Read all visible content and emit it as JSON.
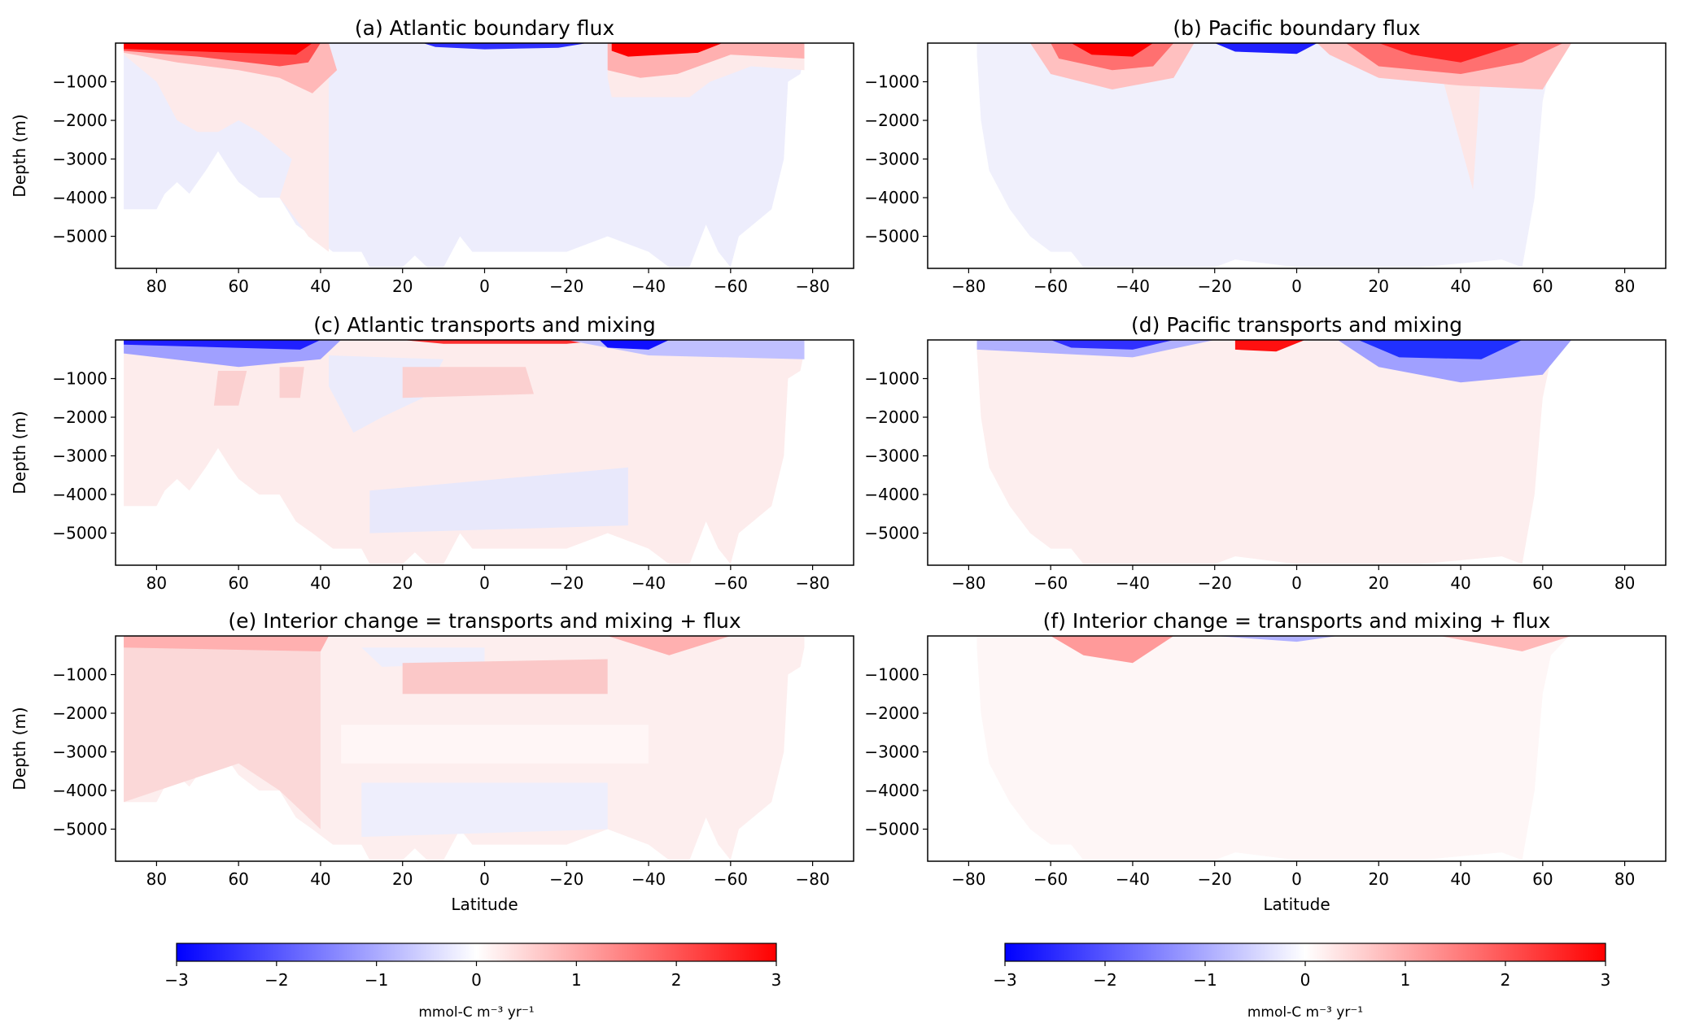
{
  "chart_data": {
    "type": "heatmap",
    "colormap": {
      "name": "bwr",
      "low": "#0000ff",
      "mid": "#ffffff",
      "high": "#ff0000"
    },
    "panels": [
      {
        "id": "a",
        "title": "(a) Atlantic boundary flux",
        "basin": "Atlantic",
        "xlim": [
          90,
          -90
        ],
        "ylim": [
          -5830,
          0
        ]
      },
      {
        "id": "b",
        "title": "(b) Pacific boundary flux",
        "basin": "Pacific",
        "xlim": [
          -90,
          90
        ],
        "ylim": [
          -5830,
          0
        ]
      },
      {
        "id": "c",
        "title": "(c) Atlantic transports and mixing",
        "basin": "Atlantic",
        "xlim": [
          90,
          -90
        ],
        "ylim": [
          -5830,
          0
        ]
      },
      {
        "id": "d",
        "title": "(d) Pacific transports and mixing",
        "basin": "Pacific",
        "xlim": [
          -90,
          90
        ],
        "ylim": [
          -5830,
          0
        ]
      },
      {
        "id": "e",
        "title": "(e) Interior change = transports and mixing + flux",
        "basin": "Atlantic",
        "xlim": [
          90,
          -90
        ],
        "ylim": [
          -5830,
          0
        ]
      },
      {
        "id": "f",
        "title": "(f) Interior change = transports and mixing + flux",
        "basin": "Pacific",
        "xlim": [
          -90,
          90
        ],
        "ylim": [
          -5830,
          0
        ]
      }
    ],
    "ylabel": "Depth (m)",
    "xlabel": "Latitude",
    "yticks": [
      -1000,
      -2000,
      -3000,
      -4000,
      -5000
    ],
    "ytick_labels": [
      "−1000",
      "−2000",
      "−3000",
      "−4000",
      "−5000"
    ],
    "xticks_atlantic": [
      80,
      60,
      40,
      20,
      0,
      -20,
      -40,
      -60,
      -80
    ],
    "xticks_pacific": [
      -80,
      -60,
      -40,
      -20,
      0,
      20,
      40,
      60,
      80
    ],
    "colorbars": [
      {
        "ticks": [
          -3,
          -2,
          -1,
          0,
          1,
          2,
          3
        ],
        "tick_labels": [
          "−3",
          "−2",
          "−1",
          "0",
          "1",
          "2",
          "3"
        ],
        "label": "mmol-C m⁻³ yr⁻¹",
        "range": [
          -3,
          3
        ]
      },
      {
        "ticks": [
          -3,
          -2,
          -1,
          0,
          1,
          2,
          3
        ],
        "tick_labels": [
          "−3",
          "−2",
          "−1",
          "0",
          "1",
          "2",
          "3"
        ],
        "label": "mmol-C m⁻³ yr⁻¹",
        "range": [
          -3,
          3
        ]
      }
    ]
  }
}
